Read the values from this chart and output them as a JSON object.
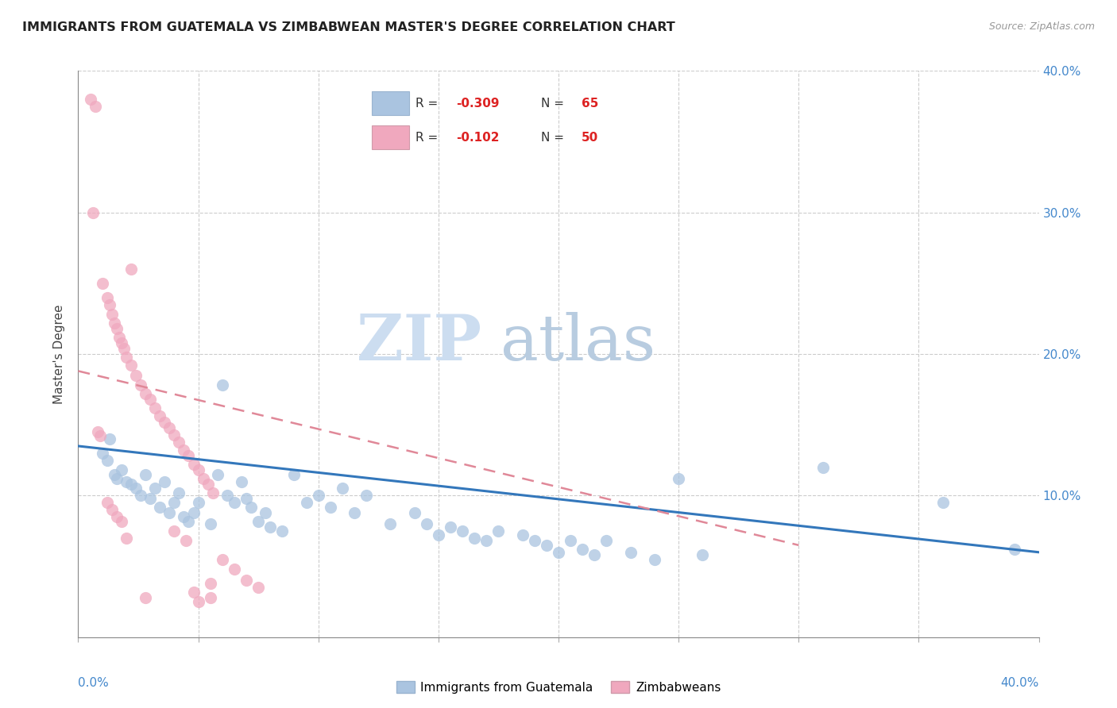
{
  "title": "IMMIGRANTS FROM GUATEMALA VS ZIMBABWEAN MASTER'S DEGREE CORRELATION CHART",
  "source": "Source: ZipAtlas.com",
  "ylabel": "Master's Degree",
  "legend_label1": "Immigrants from Guatemala",
  "legend_label2": "Zimbabweans",
  "legend_r1": "-0.309",
  "legend_n1": "65",
  "legend_r2": "-0.102",
  "legend_n2": "50",
  "color_blue": "#aac4e0",
  "color_pink": "#f0a8be",
  "color_blue_line": "#3377bb",
  "color_pink_line": "#e08898",
  "xlim": [
    0.0,
    0.4
  ],
  "ylim": [
    0.0,
    0.4
  ],
  "blue_points": [
    [
      0.01,
      0.13
    ],
    [
      0.012,
      0.125
    ],
    [
      0.013,
      0.14
    ],
    [
      0.015,
      0.115
    ],
    [
      0.016,
      0.112
    ],
    [
      0.018,
      0.118
    ],
    [
      0.02,
      0.11
    ],
    [
      0.022,
      0.108
    ],
    [
      0.024,
      0.105
    ],
    [
      0.026,
      0.1
    ],
    [
      0.028,
      0.115
    ],
    [
      0.03,
      0.098
    ],
    [
      0.032,
      0.105
    ],
    [
      0.034,
      0.092
    ],
    [
      0.036,
      0.11
    ],
    [
      0.038,
      0.088
    ],
    [
      0.04,
      0.095
    ],
    [
      0.042,
      0.102
    ],
    [
      0.044,
      0.085
    ],
    [
      0.046,
      0.082
    ],
    [
      0.048,
      0.088
    ],
    [
      0.05,
      0.095
    ],
    [
      0.055,
      0.08
    ],
    [
      0.058,
      0.115
    ],
    [
      0.06,
      0.178
    ],
    [
      0.062,
      0.1
    ],
    [
      0.065,
      0.095
    ],
    [
      0.068,
      0.11
    ],
    [
      0.07,
      0.098
    ],
    [
      0.072,
      0.092
    ],
    [
      0.075,
      0.082
    ],
    [
      0.078,
      0.088
    ],
    [
      0.08,
      0.078
    ],
    [
      0.085,
      0.075
    ],
    [
      0.09,
      0.115
    ],
    [
      0.095,
      0.095
    ],
    [
      0.1,
      0.1
    ],
    [
      0.105,
      0.092
    ],
    [
      0.11,
      0.105
    ],
    [
      0.115,
      0.088
    ],
    [
      0.12,
      0.1
    ],
    [
      0.13,
      0.08
    ],
    [
      0.14,
      0.088
    ],
    [
      0.145,
      0.08
    ],
    [
      0.15,
      0.072
    ],
    [
      0.155,
      0.078
    ],
    [
      0.16,
      0.075
    ],
    [
      0.165,
      0.07
    ],
    [
      0.17,
      0.068
    ],
    [
      0.175,
      0.075
    ],
    [
      0.185,
      0.072
    ],
    [
      0.19,
      0.068
    ],
    [
      0.195,
      0.065
    ],
    [
      0.2,
      0.06
    ],
    [
      0.205,
      0.068
    ],
    [
      0.21,
      0.062
    ],
    [
      0.215,
      0.058
    ],
    [
      0.22,
      0.068
    ],
    [
      0.23,
      0.06
    ],
    [
      0.24,
      0.055
    ],
    [
      0.25,
      0.112
    ],
    [
      0.26,
      0.058
    ],
    [
      0.31,
      0.12
    ],
    [
      0.36,
      0.095
    ],
    [
      0.39,
      0.062
    ]
  ],
  "pink_points": [
    [
      0.005,
      0.38
    ],
    [
      0.007,
      0.375
    ],
    [
      0.006,
      0.3
    ],
    [
      0.01,
      0.25
    ],
    [
      0.012,
      0.24
    ],
    [
      0.013,
      0.235
    ],
    [
      0.014,
      0.228
    ],
    [
      0.015,
      0.222
    ],
    [
      0.016,
      0.218
    ],
    [
      0.017,
      0.212
    ],
    [
      0.018,
      0.208
    ],
    [
      0.019,
      0.204
    ],
    [
      0.02,
      0.198
    ],
    [
      0.022,
      0.192
    ],
    [
      0.024,
      0.185
    ],
    [
      0.026,
      0.178
    ],
    [
      0.028,
      0.172
    ],
    [
      0.03,
      0.168
    ],
    [
      0.032,
      0.162
    ],
    [
      0.034,
      0.156
    ],
    [
      0.036,
      0.152
    ],
    [
      0.038,
      0.148
    ],
    [
      0.04,
      0.143
    ],
    [
      0.042,
      0.138
    ],
    [
      0.044,
      0.132
    ],
    [
      0.046,
      0.128
    ],
    [
      0.048,
      0.122
    ],
    [
      0.05,
      0.118
    ],
    [
      0.052,
      0.112
    ],
    [
      0.054,
      0.108
    ],
    [
      0.056,
      0.102
    ],
    [
      0.008,
      0.145
    ],
    [
      0.009,
      0.142
    ],
    [
      0.022,
      0.26
    ],
    [
      0.06,
      0.055
    ],
    [
      0.065,
      0.048
    ],
    [
      0.07,
      0.04
    ],
    [
      0.075,
      0.035
    ],
    [
      0.012,
      0.095
    ],
    [
      0.014,
      0.09
    ],
    [
      0.016,
      0.085
    ],
    [
      0.018,
      0.082
    ],
    [
      0.04,
      0.075
    ],
    [
      0.045,
      0.068
    ],
    [
      0.055,
      0.038
    ],
    [
      0.055,
      0.028
    ],
    [
      0.048,
      0.032
    ],
    [
      0.05,
      0.025
    ],
    [
      0.028,
      0.028
    ],
    [
      0.02,
      0.07
    ]
  ],
  "blue_trendline": [
    [
      0.0,
      0.135
    ],
    [
      0.4,
      0.06
    ]
  ],
  "pink_trendline": [
    [
      0.0,
      0.188
    ],
    [
      0.3,
      0.065
    ]
  ]
}
